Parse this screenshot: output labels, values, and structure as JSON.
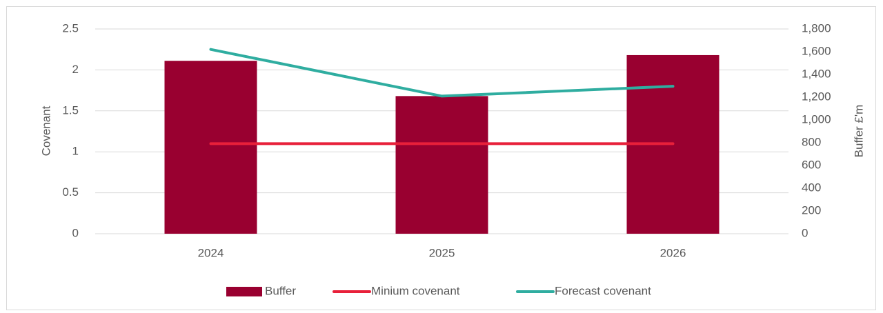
{
  "chart_data": {
    "type": "bar_line_combo",
    "categories": [
      "2024",
      "2025",
      "2026"
    ],
    "ylabel": "Covenant",
    "y2label": "Buffer £'m",
    "ylim": [
      0,
      2.5
    ],
    "yticks": [
      0,
      0.5,
      1,
      1.5,
      2,
      2.5
    ],
    "y2lim": [
      0,
      1800
    ],
    "y2ticks": [
      0,
      200,
      400,
      600,
      800,
      {
        "value": 1000,
        "label": "1,000"
      },
      {
        "value": 1200,
        "label": "1,200"
      },
      {
        "value": 1400,
        "label": "1,400"
      },
      {
        "value": 1600,
        "label": "1,600"
      },
      {
        "value": 1800,
        "label": "1,800"
      }
    ],
    "grid": true,
    "legend": "bottom",
    "series": [
      {
        "name": "Buffer",
        "type": "bar",
        "axis": "y2",
        "color": "#990030",
        "values": [
          1520,
          1210,
          1570
        ]
      },
      {
        "name": "Minium covenant",
        "type": "line",
        "axis": "y",
        "color": "#e8203a",
        "values": [
          1.1,
          1.1,
          1.1
        ]
      },
      {
        "name": "Forecast covenant",
        "type": "line",
        "axis": "y",
        "color": "#2fada0",
        "values": [
          2.25,
          1.68,
          1.8
        ]
      }
    ]
  }
}
